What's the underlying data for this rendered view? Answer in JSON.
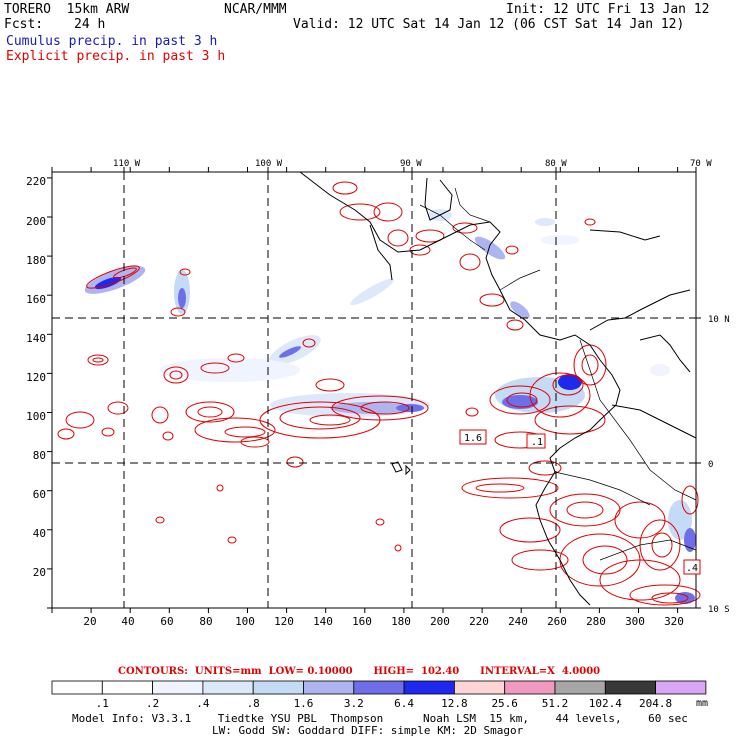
{
  "header": {
    "model": "TORERO  15km ARW",
    "org": "NCAR/MMM",
    "init": "Init: 12 UTC Fri 13 Jan 12",
    "fcst_label": "Fcst:",
    "fcst_value": "24 h",
    "valid": "Valid: 12 UTC Sat 14 Jan 12 (06 CST Sat 14 Jan 12)",
    "cumulus": "Cumulus precip. in past 3 h",
    "explicit": "Explicit precip. in past 3 h"
  },
  "map": {
    "lon_labels": [
      "110 W",
      "100 W",
      "90 W",
      "80 W",
      "70 W"
    ],
    "lat_labels": [
      "10 N",
      "0",
      "10 S"
    ],
    "y_ticks": [
      "220",
      "200",
      "180",
      "160",
      "140",
      "120",
      "100",
      "80",
      "60",
      "40",
      "20"
    ],
    "x_ticks": [
      "20",
      "40",
      "60",
      "80",
      "100",
      "120",
      "140",
      "160",
      "180",
      "200",
      "220",
      "240",
      "260",
      "280",
      "300",
      "320"
    ],
    "box_labels": [
      "1.6",
      ".1",
      ".4"
    ]
  },
  "legend": {
    "contours": "CONTOURS:  UNITS=mm  LOW= 0.10000      HIGH=  102.40      INTERVAL=X  4.0000",
    "unit": "mm",
    "bins": [
      ".1",
      ".2",
      ".4",
      ".8",
      "1.6",
      "3.2",
      "6.4",
      "12.8",
      "25.6",
      "51.2",
      "102.4",
      "204.8"
    ],
    "colors": [
      "#ffffff",
      "#ffffff",
      "#f0f4ff",
      "#dde8fb",
      "#c4daf5",
      "#aeb4f0",
      "#6e6ee8",
      "#1e28ee",
      "#ffd4d4",
      "#f09ac0",
      "#a6a6a6",
      "#383838",
      "#d9a6f5"
    ]
  },
  "footer": {
    "line1": "Model Info: V3.3.1    Tiedtke YSU PBL  Thompson      Noah LSM  15 km,    44 levels,    60 sec",
    "line2": "LW: Godd SW: Goddard DIFF: simple KM: 2D Smagor"
  }
}
